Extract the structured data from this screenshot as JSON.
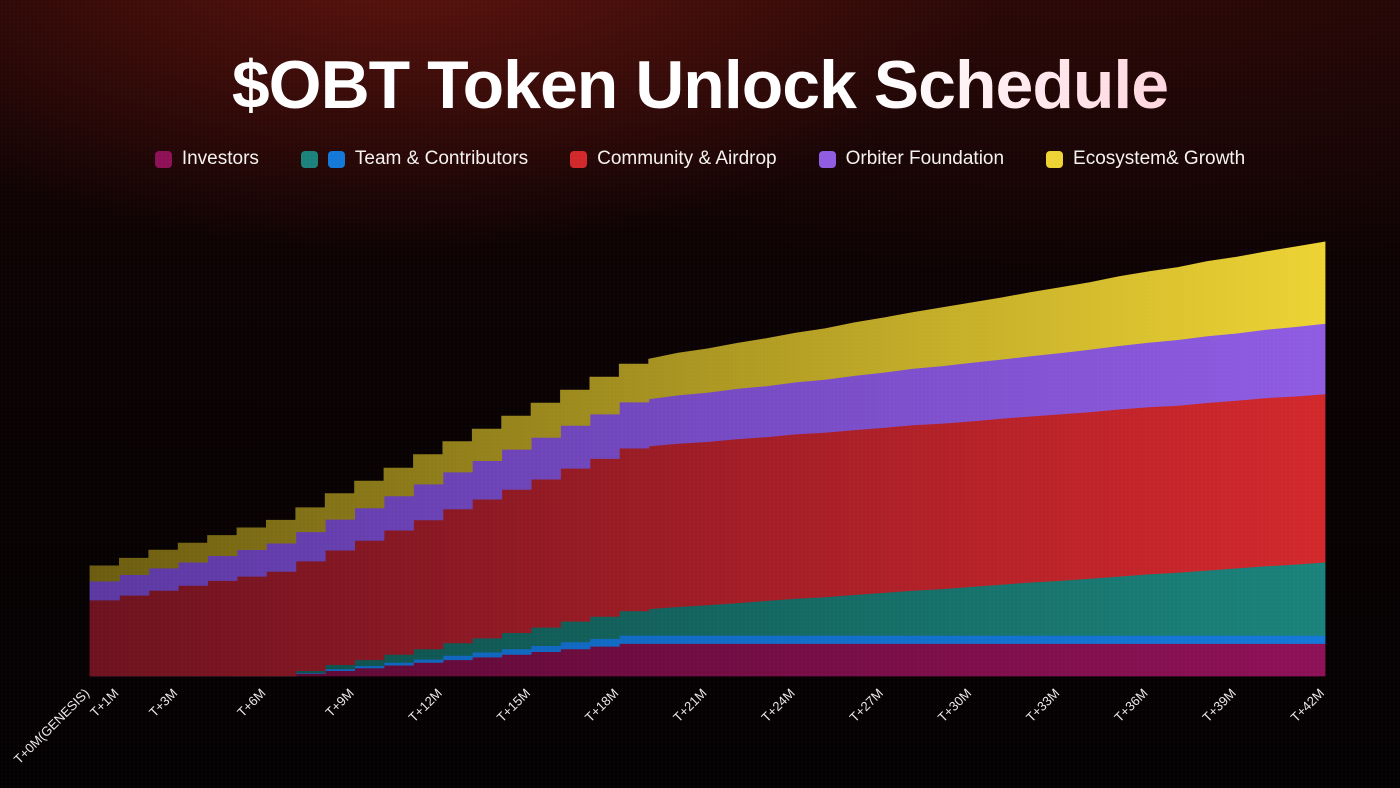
{
  "title": "$OBT Token Unlock Schedule",
  "legend": {
    "items": [
      {
        "label": "Investors",
        "colors": [
          "#8E1157"
        ]
      },
      {
        "label": "Team & Contributors",
        "colors": [
          "#1B837B",
          "#1478D8"
        ]
      },
      {
        "label": "Community & Airdrop",
        "colors": [
          "#D2282C"
        ]
      },
      {
        "label": "Orbiter Foundation",
        "colors": [
          "#8F5CE2"
        ]
      },
      {
        "label": "Ecosystem& Growth",
        "colors": [
          "#EDD334"
        ]
      }
    ]
  },
  "chart_data": {
    "type": "area",
    "stacked": true,
    "title": "$OBT Token Unlock Schedule",
    "x_unit": "months after genesis",
    "x_range": [
      0,
      42
    ],
    "y_unit": "cumulative unlocked share (%, estimated; no y-axis labels shown)",
    "ylim": [
      0,
      85
    ],
    "grid": false,
    "legend_position": "top",
    "ticks": [
      {
        "month": 0,
        "label": "T+0M(GENESIS)"
      },
      {
        "month": 1,
        "label": "T+1M"
      },
      {
        "month": 3,
        "label": "T+3M"
      },
      {
        "month": 6,
        "label": "T+6M"
      },
      {
        "month": 9,
        "label": "T+9M"
      },
      {
        "month": 12,
        "label": "T+12M"
      },
      {
        "month": 15,
        "label": "T+15M"
      },
      {
        "month": 18,
        "label": "T+18M"
      },
      {
        "month": 21,
        "label": "T+21M"
      },
      {
        "month": 24,
        "label": "T+24M"
      },
      {
        "month": 27,
        "label": "T+27M"
      },
      {
        "month": 30,
        "label": "T+30M"
      },
      {
        "month": 33,
        "label": "T+33M"
      },
      {
        "month": 36,
        "label": "T+36M"
      },
      {
        "month": 39,
        "label": "T+39M"
      },
      {
        "month": 42,
        "label": "T+42M"
      }
    ],
    "months": [
      0,
      1,
      2,
      3,
      4,
      5,
      6,
      7,
      8,
      9,
      10,
      11,
      12,
      13,
      14,
      15,
      16,
      17,
      18,
      19,
      20,
      21,
      22,
      23,
      24,
      25,
      26,
      27,
      28,
      29,
      30,
      31,
      32,
      33,
      34,
      35,
      36,
      37,
      38,
      39,
      40,
      41,
      42
    ],
    "series": [
      {
        "name": "Investors",
        "color_left": "#56082F",
        "color_right": "#8E1157",
        "values": [
          0,
          0,
          0,
          0,
          0,
          0,
          0,
          0.5,
          1,
          1.5,
          2,
          2.5,
          3,
          3.5,
          4,
          4.5,
          5,
          5.5,
          6,
          6,
          6,
          6,
          6,
          6,
          6,
          6,
          6,
          6,
          6,
          6,
          6,
          6,
          6,
          6,
          6,
          6,
          6,
          6,
          6,
          6,
          6,
          6,
          6
        ]
      },
      {
        "name": "Team & Contributors (blue band)",
        "color_left": "#0F5FB5",
        "color_right": "#1478D8",
        "values": [
          0,
          0,
          0,
          0,
          0,
          0,
          0,
          0.1,
          0.3,
          0.4,
          0.5,
          0.6,
          0.8,
          0.9,
          1,
          1.1,
          1.3,
          1.4,
          1.5,
          1.5,
          1.5,
          1.5,
          1.5,
          1.5,
          1.5,
          1.5,
          1.5,
          1.5,
          1.5,
          1.5,
          1.5,
          1.5,
          1.5,
          1.5,
          1.5,
          1.5,
          1.5,
          1.5,
          1.5,
          1.5,
          1.5,
          1.5,
          1.5
        ]
      },
      {
        "name": "Team & Contributors (teal band)",
        "color_left": "#0C4744",
        "color_right": "#1B837B",
        "values": [
          0,
          0,
          0,
          0,
          0,
          0,
          0,
          0.4,
          0.8,
          1.1,
          1.5,
          1.9,
          2.3,
          2.6,
          3,
          3.4,
          3.8,
          4.1,
          4.5,
          4.9,
          5.3,
          5.6,
          6,
          6.4,
          6.8,
          7.1,
          7.5,
          7.9,
          8.3,
          8.6,
          9,
          9.4,
          9.8,
          10.1,
          10.5,
          10.9,
          11.3,
          11.6,
          12,
          12.4,
          12.8,
          13.1,
          13.5
        ]
      },
      {
        "name": "Community & Airdrop",
        "color_left": "#6E1220",
        "color_right": "#D2282C",
        "values": [
          14,
          14.9,
          15.8,
          16.7,
          17.6,
          18.4,
          19.3,
          20.2,
          21.1,
          22,
          22.9,
          23.8,
          24.7,
          25.6,
          26.4,
          27.3,
          28.2,
          29.1,
          30,
          30,
          30.1,
          30.1,
          30.2,
          30.2,
          30.3,
          30.3,
          30.4,
          30.4,
          30.5,
          30.5,
          30.5,
          30.6,
          30.6,
          30.7,
          30.7,
          30.8,
          30.8,
          30.8,
          30.9,
          30.9,
          31,
          31,
          31
        ]
      },
      {
        "name": "Orbiter Foundation",
        "color_left": "#5C38A2",
        "color_right": "#8F5CE2",
        "values": [
          3.5,
          3.8,
          4.1,
          4.3,
          4.6,
          4.9,
          5.2,
          5.4,
          5.7,
          6,
          6.3,
          6.6,
          6.8,
          7.1,
          7.4,
          7.7,
          7.9,
          8.2,
          8.5,
          8.7,
          8.9,
          9.1,
          9.3,
          9.4,
          9.6,
          9.8,
          10,
          10.2,
          10.4,
          10.6,
          10.8,
          10.9,
          11.1,
          11.3,
          11.5,
          11.7,
          11.9,
          12.1,
          12.3,
          12.4,
          12.6,
          12.8,
          13
        ]
      },
      {
        "name": "Ecosystem& Growth",
        "color_left": "#6B5C10",
        "color_right": "#EDD334",
        "values": [
          2.8,
          3,
          3.3,
          3.5,
          3.7,
          4,
          4.2,
          4.4,
          4.7,
          4.9,
          5.1,
          5.4,
          5.6,
          5.8,
          6.1,
          6.3,
          6.5,
          6.8,
          7,
          7.3,
          7.7,
          8,
          8.3,
          8.7,
          9,
          9.3,
          9.7,
          10,
          10.3,
          10.7,
          11,
          11.3,
          11.7,
          12,
          12.3,
          12.7,
          13,
          13.3,
          13.7,
          14,
          14.3,
          14.7,
          15
        ]
      }
    ]
  }
}
